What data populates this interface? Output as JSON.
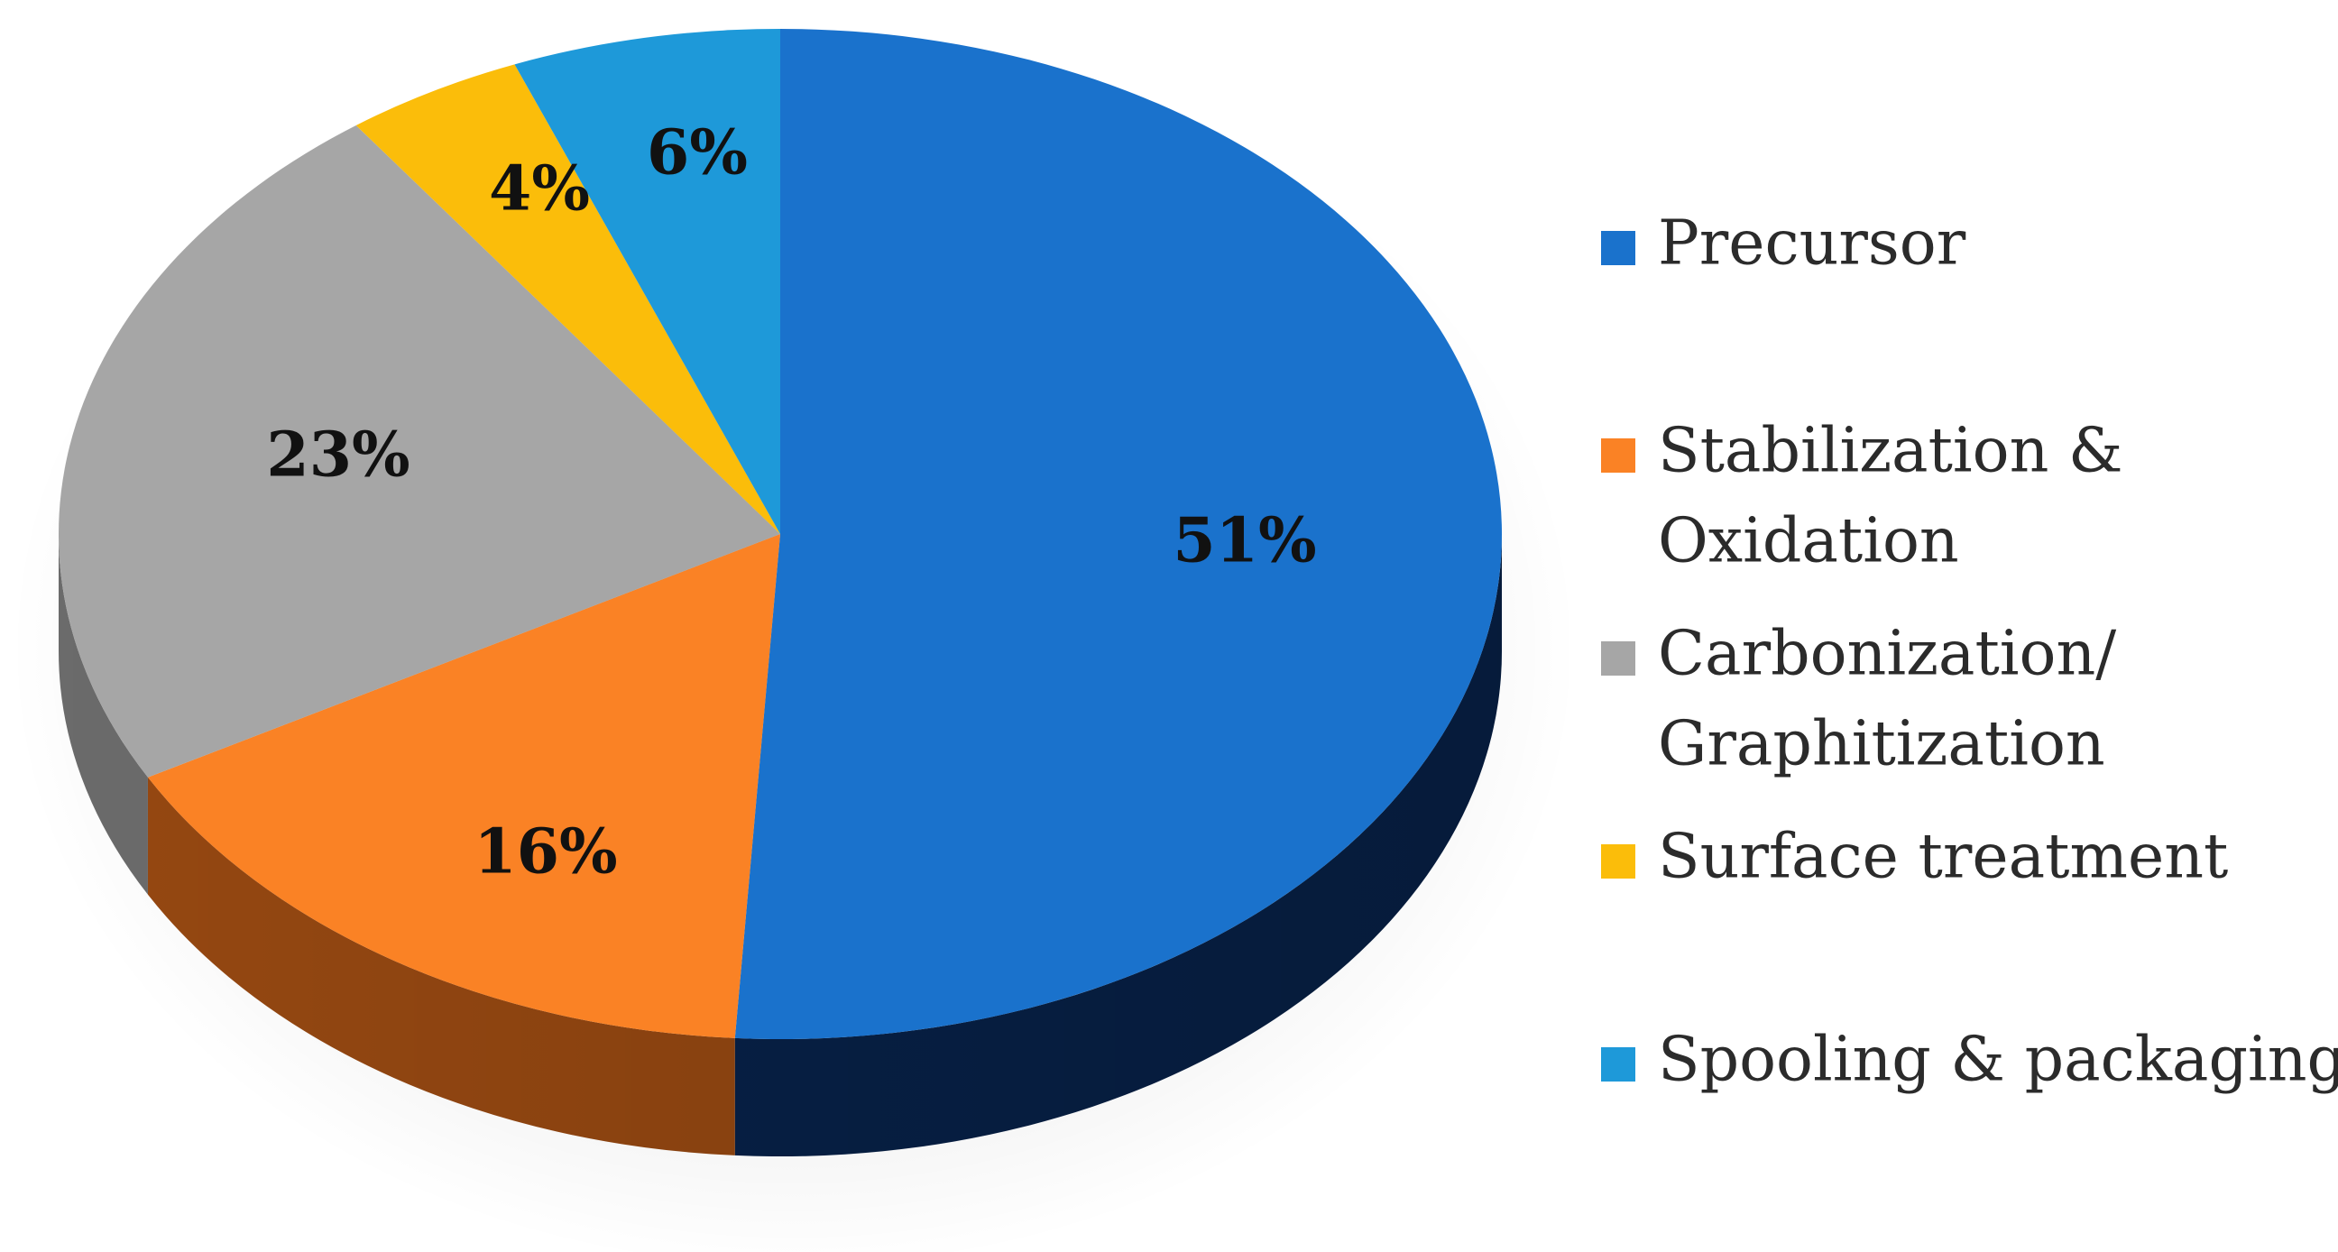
{
  "chart_data": {
    "type": "pie",
    "style": "3d",
    "title": "",
    "slices": [
      {
        "label": "Precursor",
        "value": 51,
        "display": "51%",
        "color": "#1a72cc",
        "side_color": "#07224a"
      },
      {
        "label": "Stabilization & Oxidation",
        "legend_lines": [
          "Stabilization &",
          "Oxidation"
        ],
        "value": 16,
        "display": "16%",
        "color": "#fa8225",
        "side_color": "#9a4a12"
      },
      {
        "label": "Carbonization/ Graphitization",
        "legend_lines": [
          "Carbonization/",
          "Graphitization"
        ],
        "value": 23,
        "display": "23%",
        "color": "#a6a6a6",
        "side_color": "#6e6e6e"
      },
      {
        "label": "Surface treatment",
        "value": 4,
        "display": "4%",
        "color": "#fbbd0a",
        "side_color": "#a67c06"
      },
      {
        "label": "Spooling & packaging",
        "value": 6,
        "display": "6%",
        "color": "#1e99d9",
        "side_color": "#0e5b85"
      }
    ],
    "legend_position": "right",
    "start_angle": "12 o'clock",
    "direction": "clockwise"
  }
}
